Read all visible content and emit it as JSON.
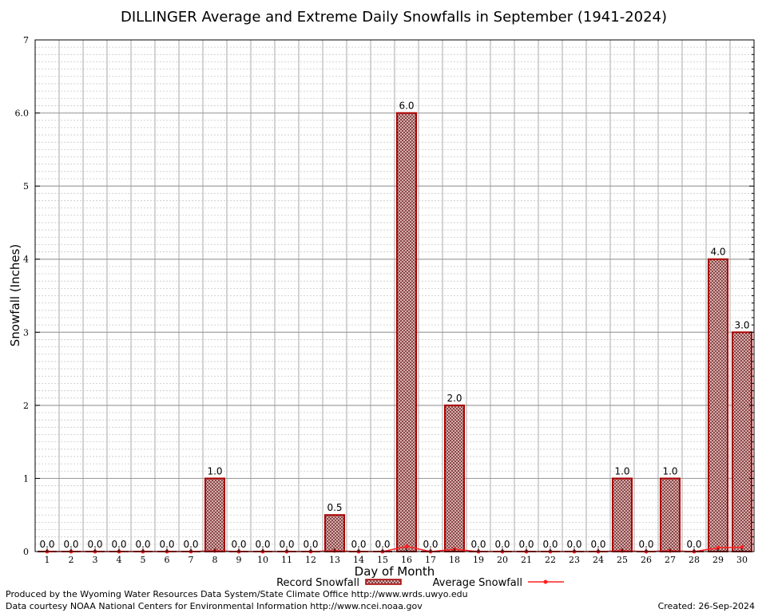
{
  "chart_data": {
    "type": "bar",
    "title": "DILLINGER Average and Extreme Daily Snowfalls in September (1941-2024)",
    "xlabel": "Day of Month",
    "ylabel": "Snowfall (Inches)",
    "ylim": [
      0,
      7
    ],
    "yticks": [
      "0",
      "1",
      "2",
      "3",
      "4",
      "5",
      "6.0",
      "7"
    ],
    "grid": true,
    "legend_position": "bottom-center",
    "categories": [
      "1",
      "2",
      "3",
      "4",
      "5",
      "6",
      "7",
      "8",
      "9",
      "10",
      "11",
      "12",
      "13",
      "14",
      "15",
      "16",
      "17",
      "18",
      "19",
      "20",
      "21",
      "22",
      "23",
      "24",
      "25",
      "26",
      "27",
      "28",
      "29",
      "30"
    ],
    "series": [
      {
        "name": "Record Snowfall",
        "kind": "bar",
        "color": "#aa0000",
        "values": [
          0,
          0,
          0,
          0,
          0,
          0,
          0,
          1,
          0,
          0,
          0,
          0,
          0.5,
          0,
          0,
          6,
          0,
          2,
          0,
          0,
          0,
          0,
          0,
          0,
          1,
          0,
          1,
          0,
          4,
          3
        ],
        "labels": [
          "0.0",
          "0.0",
          "0.0",
          "0.0",
          "0.0",
          "0.0",
          "0.0",
          "1.0",
          "0.0",
          "0.0",
          "0.0",
          "0.0",
          "0.5",
          "0.0",
          "0.0",
          "6.0",
          "0.0",
          "2.0",
          "0.0",
          "0.0",
          "0.0",
          "0.0",
          "0.0",
          "0.0",
          "1.0",
          "0.0",
          "1.0",
          "0.0",
          "4.0",
          "3.0"
        ]
      },
      {
        "name": "Average Snowfall",
        "kind": "line",
        "color": "#ff2020",
        "values": [
          0,
          0,
          0,
          0,
          0,
          0,
          0,
          0.01,
          0,
          0,
          0,
          0,
          0.01,
          0,
          0,
          0.07,
          0,
          0.03,
          0,
          0,
          0,
          0,
          0,
          0,
          0.01,
          0,
          0.01,
          0,
          0.05,
          0.06
        ]
      }
    ]
  },
  "footer": {
    "produced_by": "Produced by the Wyoming Water Resources Data System/State Climate Office http://www.wrds.uwyo.edu",
    "courtesy": "Data courtesy NOAA National Centers for Environmental Information http://www.ncei.noaa.gov",
    "created": "Created:  26-Sep-2024"
  }
}
